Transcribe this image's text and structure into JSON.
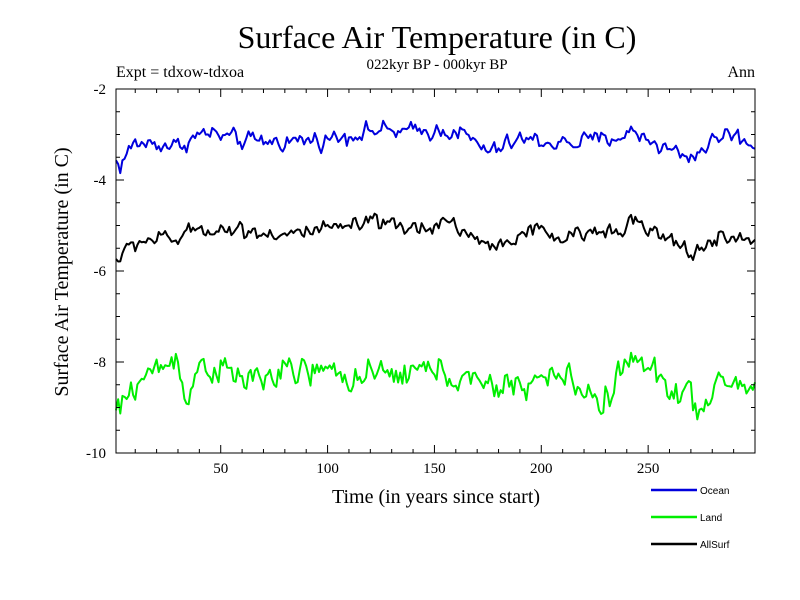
{
  "chart_data": {
    "type": "line",
    "title": "Surface Air Temperature (in C)",
    "subtitle": "022kyr BP - 000kyr BP",
    "top_left_label": "Expt = tdxow-tdxoa",
    "top_right_label": "Ann",
    "xlabel": "Time (in years since start)",
    "ylabel": "Surface Air Temperature (in C)",
    "xlim": [
      1,
      300
    ],
    "ylim": [
      -10,
      -2
    ],
    "x_ticks": [
      50,
      100,
      150,
      200,
      250
    ],
    "y_ticks": [
      -10,
      -8,
      -6,
      -4,
      -2
    ],
    "grid": false,
    "legend_position": "bottom-right",
    "series": [
      {
        "name": "Ocean",
        "color": "#0000dd",
        "mean": -3.2,
        "variability": 0.13,
        "anchors": [
          [
            1,
            -3.6
          ],
          [
            3,
            -3.7
          ],
          [
            6,
            -3.4
          ],
          [
            10,
            -3.2
          ],
          [
            20,
            -3.2
          ],
          [
            30,
            -3.25
          ],
          [
            43,
            -2.95
          ],
          [
            60,
            -3.15
          ],
          [
            80,
            -3.15
          ],
          [
            100,
            -3.1
          ],
          [
            122,
            -2.9
          ],
          [
            137,
            -2.95
          ],
          [
            160,
            -2.9
          ],
          [
            176,
            -3.4
          ],
          [
            190,
            -3.1
          ],
          [
            210,
            -3.2
          ],
          [
            230,
            -3.1
          ],
          [
            244,
            -2.95
          ],
          [
            258,
            -3.3
          ],
          [
            270,
            -3.5
          ],
          [
            280,
            -3.15
          ],
          [
            287,
            -2.95
          ],
          [
            300,
            -3.25
          ]
        ]
      },
      {
        "name": "Land",
        "color": "#00ee00",
        "mean": -8.4,
        "variability": 0.22,
        "anchors": [
          [
            1,
            -9.1
          ],
          [
            4,
            -9.0
          ],
          [
            8,
            -8.6
          ],
          [
            15,
            -8.3
          ],
          [
            30,
            -7.9
          ],
          [
            35,
            -8.9
          ],
          [
            40,
            -8.0
          ],
          [
            60,
            -8.4
          ],
          [
            90,
            -8.2
          ],
          [
            120,
            -8.35
          ],
          [
            150,
            -8.15
          ],
          [
            176,
            -8.6
          ],
          [
            210,
            -8.3
          ],
          [
            229,
            -8.9
          ],
          [
            241,
            -7.9
          ],
          [
            260,
            -8.5
          ],
          [
            270,
            -8.8
          ],
          [
            276,
            -9.1
          ],
          [
            285,
            -8.4
          ],
          [
            300,
            -8.6
          ]
        ]
      },
      {
        "name": "AllSurf",
        "color": "#000000",
        "mean": -5.25,
        "variability": 0.12,
        "anchors": [
          [
            1,
            -5.75
          ],
          [
            3,
            -5.7
          ],
          [
            8,
            -5.45
          ],
          [
            15,
            -5.3
          ],
          [
            30,
            -5.3
          ],
          [
            40,
            -5.05
          ],
          [
            60,
            -5.1
          ],
          [
            80,
            -5.2
          ],
          [
            100,
            -5.1
          ],
          [
            122,
            -4.95
          ],
          [
            137,
            -5.1
          ],
          [
            157,
            -4.9
          ],
          [
            176,
            -5.5
          ],
          [
            195,
            -5.1
          ],
          [
            210,
            -5.3
          ],
          [
            230,
            -5.1
          ],
          [
            242,
            -4.9
          ],
          [
            258,
            -5.3
          ],
          [
            270,
            -5.6
          ],
          [
            285,
            -5.25
          ],
          [
            300,
            -5.35
          ]
        ]
      }
    ]
  }
}
